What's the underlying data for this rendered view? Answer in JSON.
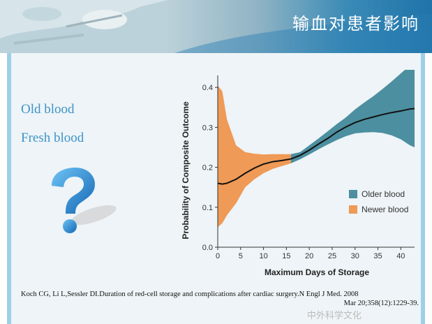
{
  "header": {
    "title": "输血对患者影响"
  },
  "labels": {
    "old_blood": "Old blood",
    "fresh_blood": "Fresh blood"
  },
  "citation": {
    "line1": "Koch CG, Li L,Sessler DI.Duration of red-cell storage and complications after cardiac surgery.N Engl J Med. 2008",
    "line2": "Mar 20;358(12):1229-39."
  },
  "watermark": "中外科学文化",
  "chart_data": {
    "type": "line",
    "title": "",
    "xlabel": "Maximum Days of Storage",
    "ylabel": "Probability of Composite Outcome",
    "xlim": [
      0,
      43
    ],
    "ylim": [
      0,
      0.43
    ],
    "xticks": [
      0,
      5,
      10,
      15,
      20,
      25,
      30,
      35,
      40
    ],
    "yticks": [
      0.0,
      0.1,
      0.2,
      0.3,
      0.4
    ],
    "ytick_labels": [
      "0.0",
      "0.1",
      "0.2",
      "0.3",
      "0.4"
    ],
    "legend": {
      "position": "right",
      "entries": [
        {
          "name": "Older blood",
          "color": "#4c8fa0"
        },
        {
          "name": "Newer blood",
          "color": "#ef9a56"
        }
      ]
    },
    "split_day": 16,
    "x": [
      0,
      1,
      2,
      4,
      6,
      8,
      10,
      12,
      14,
      16,
      18,
      20,
      22,
      24,
      26,
      28,
      30,
      32,
      34,
      36,
      38,
      40,
      42,
      43
    ],
    "mean": [
      0.16,
      0.158,
      0.16,
      0.17,
      0.185,
      0.198,
      0.208,
      0.214,
      0.217,
      0.221,
      0.23,
      0.243,
      0.258,
      0.272,
      0.288,
      0.301,
      0.312,
      0.32,
      0.326,
      0.332,
      0.337,
      0.341,
      0.346,
      0.347
    ],
    "upper": [
      0.405,
      0.39,
      0.32,
      0.255,
      0.238,
      0.234,
      0.232,
      0.233,
      0.233,
      0.233,
      0.238,
      0.255,
      0.272,
      0.29,
      0.308,
      0.325,
      0.345,
      0.362,
      0.378,
      0.396,
      0.415,
      0.435,
      0.455,
      0.46
    ],
    "lower": [
      0.05,
      0.06,
      0.08,
      0.11,
      0.15,
      0.17,
      0.185,
      0.196,
      0.203,
      0.21,
      0.22,
      0.232,
      0.245,
      0.257,
      0.268,
      0.278,
      0.285,
      0.287,
      0.288,
      0.286,
      0.28,
      0.27,
      0.255,
      0.25
    ]
  }
}
